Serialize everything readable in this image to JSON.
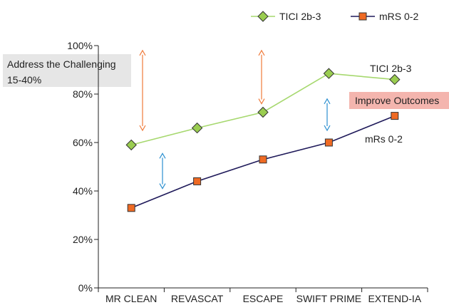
{
  "chart_data": {
    "type": "line",
    "categories": [
      "MR CLEAN",
      "REVASCAT",
      "ESCAPE",
      "SWIFT PRIME",
      "EXTEND-IA"
    ],
    "series": [
      {
        "name": "TICI 2b-3",
        "values": [
          59,
          66,
          72.5,
          88.5,
          86
        ],
        "color": "#9acd50",
        "line_color": "#a6d86e",
        "marker": "diamond"
      },
      {
        "name": "mRS 0-2",
        "values": [
          33,
          44,
          53,
          60,
          71
        ],
        "color": "#ef6a23",
        "line_color": "#1f1a5a",
        "marker": "square"
      }
    ],
    "ylim": [
      0,
      100
    ],
    "yticks": [
      "0%",
      "20%",
      "40%",
      "60%",
      "80%",
      "100%"
    ],
    "legend_position": "top-right",
    "annotations": {
      "challenge_line1": "Address the Challenging",
      "challenge_line2": "15-40%",
      "outcomes": "Improve Outcomes",
      "tici_label": "TICI 2b-3",
      "mrs_label": "mRs 0-2"
    }
  }
}
